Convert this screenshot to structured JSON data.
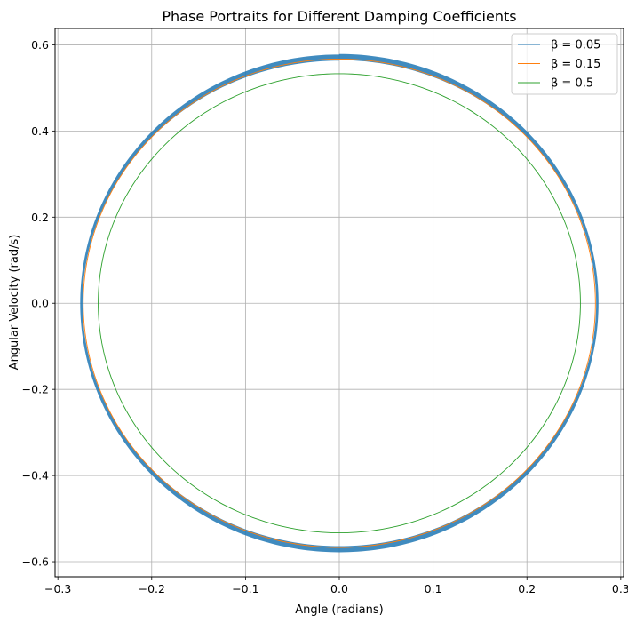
{
  "chart_data": {
    "type": "line",
    "title": "Phase Portraits for Different Damping Coefficients",
    "xlabel": "Angle (radians)",
    "ylabel": "Angular Velocity (rad/s)",
    "xlim": [
      -0.303,
      0.303
    ],
    "ylim": [
      -0.635,
      0.638
    ],
    "xticks": [
      -0.3,
      -0.2,
      -0.1,
      0.0,
      0.1,
      0.2,
      0.3
    ],
    "xtick_labels": [
      "−0.3",
      "−0.2",
      "−0.1",
      "0.0",
      "0.1",
      "0.2",
      "0.3"
    ],
    "yticks": [
      -0.6,
      -0.4,
      -0.2,
      0.0,
      0.2,
      0.4,
      0.6
    ],
    "ytick_labels": [
      "−0.6",
      "−0.4",
      "−0.2",
      "0.0",
      "0.2",
      "0.4",
      "0.6"
    ],
    "grid": true,
    "legend_position": "top-right",
    "series": [
      {
        "name": "β = 0.05",
        "color": "#1f77b4",
        "center": [
          0.0,
          0.0
        ],
        "x_amplitude": [
          0.274,
          0.276
        ],
        "y_amplitude": [
          0.564,
          0.578
        ]
      },
      {
        "name": "β = 0.15",
        "color": "#ff7f0e",
        "center": [
          0.0,
          0.0
        ],
        "x_amplitude": [
          0.273,
          0.273
        ],
        "y_amplitude": [
          0.567,
          0.567
        ]
      },
      {
        "name": "β = 0.5",
        "color": "#2ca02c",
        "center": [
          0.0,
          0.0
        ],
        "x_amplitude": [
          0.257,
          0.257
        ],
        "y_amplitude": [
          0.533,
          0.533
        ]
      }
    ]
  }
}
